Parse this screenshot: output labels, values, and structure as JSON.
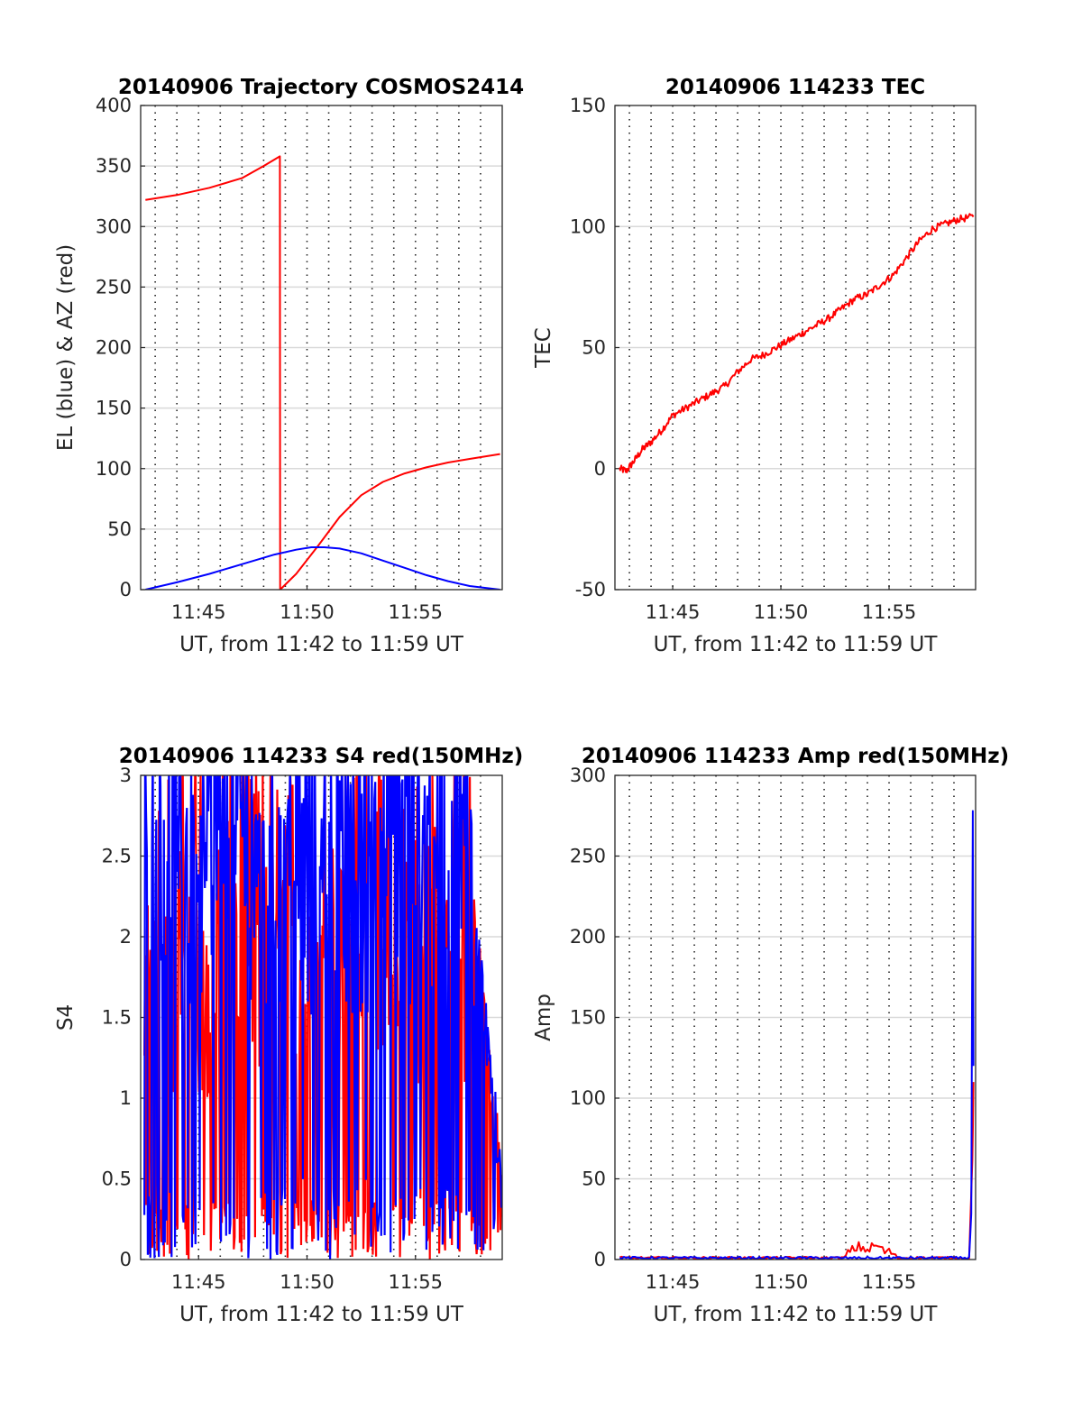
{
  "charts": [
    {
      "title": "20140906 Trajectory COSMOS2414",
      "xlabel": "UT, from 11:42 to 11:59 UT",
      "ylabel": "EL (blue) & AZ (red)",
      "ytick_labels": [
        "0",
        "50",
        "100",
        "150",
        "200",
        "250",
        "300",
        "350",
        "400"
      ],
      "xtick_labels": [
        "11:45",
        "11:50",
        "11:55"
      ]
    },
    {
      "title": "20140906 114233 TEC",
      "xlabel": "UT, from 11:42 to 11:59 UT",
      "ylabel": "TEC",
      "ytick_labels": [
        "-50",
        "0",
        "50",
        "100",
        "150"
      ],
      "xtick_labels": [
        "11:45",
        "11:50",
        "11:55"
      ]
    },
    {
      "title": "20140906 114233 S4 red(150MHz)",
      "xlabel": "UT, from 11:42 to 11:59 UT",
      "ylabel": "S4",
      "ytick_labels": [
        "0",
        "0.5",
        "1",
        "1.5",
        "2",
        "2.5",
        "3"
      ],
      "xtick_labels": [
        "11:45",
        "11:50",
        "11:55"
      ]
    },
    {
      "title": "20140906 114233 Amp red(150MHz)",
      "xlabel": "UT, from 11:42 to 11:59 UT",
      "ylabel": "Amp",
      "ytick_labels": [
        "0",
        "50",
        "100",
        "150",
        "200",
        "250",
        "300"
      ],
      "xtick_labels": [
        "11:45",
        "11:50",
        "11:55"
      ]
    }
  ],
  "chart_data": [
    {
      "type": "line",
      "title": "20140906 Trajectory COSMOS2414",
      "xlabel": "UT, from 11:42 to 11:59 UT",
      "ylabel": "EL (blue) & AZ (red)",
      "xlim_minutes": [
        42.33,
        59.0
      ],
      "ylim": [
        0,
        400
      ],
      "grid": true,
      "series": [
        {
          "color": "#ff0000",
          "x": [
            42.55,
            44.0,
            45.5,
            47.0,
            48.0,
            48.75,
            48.76,
            49.5,
            50.5,
            51.5,
            52.5,
            53.5,
            54.5,
            55.5,
            56.5,
            57.5,
            58.9
          ],
          "values": [
            322,
            326,
            332,
            340,
            350,
            358,
            0,
            13,
            36,
            60,
            78,
            89,
            96,
            101,
            105,
            108,
            112
          ]
        },
        {
          "color": "#0000ff",
          "x": [
            42.55,
            44.0,
            45.5,
            47.0,
            48.5,
            49.5,
            50.2,
            50.8,
            51.5,
            52.5,
            53.5,
            54.5,
            55.5,
            56.5,
            57.5,
            58.9
          ],
          "values": [
            0,
            6,
            13,
            21,
            29,
            33,
            35,
            35,
            34,
            30,
            24,
            18,
            12,
            7,
            3,
            0
          ]
        }
      ]
    },
    {
      "type": "line",
      "title": "20140906 114233 TEC",
      "xlabel": "UT, from 11:42 to 11:59 UT",
      "ylabel": "TEC",
      "xlim_minutes": [
        42.33,
        59.0
      ],
      "ylim": [
        -50,
        150
      ],
      "grid": true,
      "series": [
        {
          "color": "#ff0000",
          "x": [
            42.55,
            42.85,
            43.2,
            43.6,
            44.0,
            44.5,
            45.0,
            45.6,
            46.2,
            46.8,
            47.4,
            48.0,
            48.6,
            49.2,
            49.8,
            50.4,
            51.0,
            51.6,
            52.2,
            52.8,
            53.4,
            54.0,
            54.6,
            55.2,
            55.8,
            56.4,
            57.0,
            57.6,
            58.2,
            58.9
          ],
          "values": [
            0,
            -1,
            3,
            8,
            11,
            16,
            22,
            25,
            28,
            31,
            34,
            40,
            45,
            47,
            50,
            53,
            56,
            59,
            62,
            66,
            70,
            72,
            76,
            80,
            87,
            94,
            99,
            101,
            103,
            104
          ]
        }
      ]
    },
    {
      "type": "line",
      "title": "20140906 114233 S4 red(150MHz)",
      "xlabel": "UT, from 11:42 to 11:59 UT",
      "ylabel": "S4",
      "xlim_minutes": [
        42.33,
        59.0
      ],
      "ylim": [
        0,
        3
      ],
      "grid": true,
      "note_shape": "dense noisy traces spanning roughly 0 to 3 across the whole interval",
      "series": [
        {
          "color": "#ff0000",
          "x": [
            42.5,
            59.0
          ],
          "range": [
            0,
            3
          ]
        },
        {
          "color": "#0000ff",
          "x": [
            42.5,
            59.0
          ],
          "range": [
            0,
            3
          ]
        }
      ]
    },
    {
      "type": "line",
      "title": "20140906 114233 Amp red(150MHz)",
      "xlabel": "UT, from 11:42 to 11:59 UT",
      "ylabel": "Amp",
      "xlim_minutes": [
        42.33,
        59.0
      ],
      "ylim": [
        0,
        300
      ],
      "grid": true,
      "series": [
        {
          "color": "#ff0000",
          "x": [
            42.55,
            52.9,
            53.2,
            53.6,
            54.0,
            54.4,
            54.8,
            55.2,
            55.4,
            58.7,
            58.85,
            58.9
          ],
          "values": [
            1,
            1,
            5,
            8,
            6,
            9,
            5,
            4,
            1,
            1,
            60,
            110
          ]
        },
        {
          "color": "#0000ff",
          "x": [
            42.55,
            50.0,
            55.0,
            58.7,
            58.8,
            58.87,
            58.9
          ],
          "values": [
            1,
            1,
            1,
            1,
            30,
            277,
            120
          ]
        }
      ]
    }
  ]
}
